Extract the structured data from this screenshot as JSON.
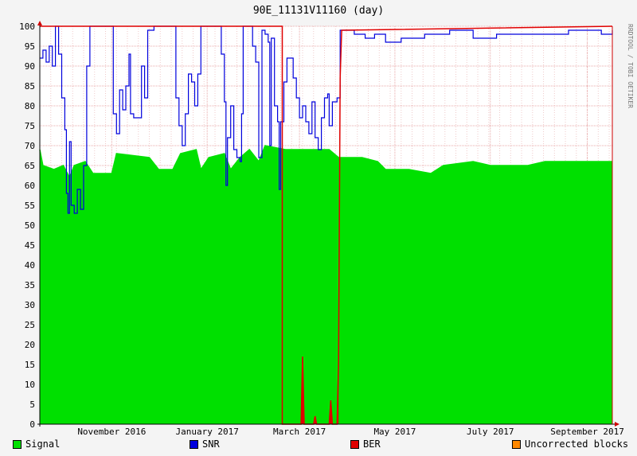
{
  "chart_data": {
    "type": "area",
    "title": "90E_11131V11160 (day)",
    "side_label": "RRDTOOL / TOBI OETIKER",
    "ylim": [
      0,
      100
    ],
    "y_ticks": [
      0,
      5,
      10,
      15,
      20,
      25,
      30,
      35,
      40,
      45,
      50,
      55,
      60,
      65,
      70,
      75,
      80,
      85,
      90,
      95,
      100
    ],
    "x_range": [
      "2016-09-16",
      "2017-09-17"
    ],
    "x_ticks": [
      {
        "date": "2016-11-01",
        "label": "November 2016"
      },
      {
        "date": "2017-01-01",
        "label": "January 2017"
      },
      {
        "date": "2017-03-01",
        "label": "March 2017"
      },
      {
        "date": "2017-05-01",
        "label": "May 2017"
      },
      {
        "date": "2017-07-01",
        "label": "July 2017"
      },
      {
        "date": "2017-09-01",
        "label": "September 2017"
      }
    ],
    "grid": true,
    "legend_position": "bottom",
    "series": [
      {
        "name": "Signal",
        "color": "#00e000",
        "style": "area",
        "points": [
          [
            "2016-09-16",
            69
          ],
          [
            "2016-09-18",
            65
          ],
          [
            "2016-09-25",
            64
          ],
          [
            "2016-10-01",
            65
          ],
          [
            "2016-10-05",
            62
          ],
          [
            "2016-10-08",
            65
          ],
          [
            "2016-10-15",
            66
          ],
          [
            "2016-10-20",
            63
          ],
          [
            "2016-11-01",
            63
          ],
          [
            "2016-11-04",
            68
          ],
          [
            "2016-11-25",
            67
          ],
          [
            "2016-12-01",
            64
          ],
          [
            "2016-12-10",
            64
          ],
          [
            "2016-12-15",
            68
          ],
          [
            "2016-12-25",
            69
          ],
          [
            "2016-12-28",
            64
          ],
          [
            "2017-01-02",
            67
          ],
          [
            "2017-01-12",
            68
          ],
          [
            "2017-01-16",
            64
          ],
          [
            "2017-01-22",
            67
          ],
          [
            "2017-01-28",
            69
          ],
          [
            "2017-02-03",
            66
          ],
          [
            "2017-02-07",
            70
          ],
          [
            "2017-02-20",
            69
          ],
          [
            "2017-03-05",
            69
          ],
          [
            "2017-03-20",
            69
          ],
          [
            "2017-03-26",
            67
          ],
          [
            "2017-04-10",
            67
          ],
          [
            "2017-04-20",
            66
          ],
          [
            "2017-04-25",
            64
          ],
          [
            "2017-05-10",
            64
          ],
          [
            "2017-05-24",
            63
          ],
          [
            "2017-06-01",
            65
          ],
          [
            "2017-06-20",
            66
          ],
          [
            "2017-07-01",
            65
          ],
          [
            "2017-07-25",
            65
          ],
          [
            "2017-08-05",
            66
          ],
          [
            "2017-09-01",
            66
          ],
          [
            "2017-09-17",
            66
          ]
        ]
      },
      {
        "name": "SNR",
        "color": "#0000dd",
        "style": "line",
        "points": [
          [
            "2016-09-16",
            92
          ],
          [
            "2016-09-18",
            94
          ],
          [
            "2016-09-20",
            91
          ],
          [
            "2016-09-22",
            95
          ],
          [
            "2016-09-24",
            90
          ],
          [
            "2016-09-26",
            100
          ],
          [
            "2016-09-28",
            93
          ],
          [
            "2016-09-30",
            82
          ],
          [
            "2016-10-02",
            74
          ],
          [
            "2016-10-03",
            58
          ],
          [
            "2016-10-04",
            53
          ],
          [
            "2016-10-05",
            71
          ],
          [
            "2016-10-06",
            55
          ],
          [
            "2016-10-08",
            53
          ],
          [
            "2016-10-10",
            59
          ],
          [
            "2016-10-12",
            54
          ],
          [
            "2016-10-14",
            65
          ],
          [
            "2016-10-16",
            90
          ],
          [
            "2016-10-18",
            100
          ],
          [
            "2016-10-30",
            100
          ],
          [
            "2016-11-02",
            78
          ],
          [
            "2016-11-04",
            73
          ],
          [
            "2016-11-06",
            84
          ],
          [
            "2016-11-08",
            79
          ],
          [
            "2016-11-10",
            85
          ],
          [
            "2016-11-12",
            93
          ],
          [
            "2016-11-13",
            78
          ],
          [
            "2016-11-15",
            77
          ],
          [
            "2016-11-18",
            77
          ],
          [
            "2016-11-20",
            90
          ],
          [
            "2016-11-22",
            82
          ],
          [
            "2016-11-24",
            99
          ],
          [
            "2016-11-28",
            100
          ],
          [
            "2016-12-10",
            100
          ],
          [
            "2016-12-12",
            82
          ],
          [
            "2016-12-14",
            75
          ],
          [
            "2016-12-16",
            70
          ],
          [
            "2016-12-18",
            78
          ],
          [
            "2016-12-20",
            88
          ],
          [
            "2016-12-22",
            86
          ],
          [
            "2016-12-24",
            80
          ],
          [
            "2016-12-26",
            88
          ],
          [
            "2016-12-28",
            100
          ],
          [
            "2017-01-08",
            100
          ],
          [
            "2017-01-10",
            93
          ],
          [
            "2017-01-12",
            81
          ],
          [
            "2017-01-13",
            60
          ],
          [
            "2017-01-14",
            72
          ],
          [
            "2017-01-16",
            80
          ],
          [
            "2017-01-18",
            69
          ],
          [
            "2017-01-20",
            67
          ],
          [
            "2017-01-22",
            66
          ],
          [
            "2017-01-23",
            78
          ],
          [
            "2017-01-24",
            100
          ],
          [
            "2017-01-28",
            100
          ],
          [
            "2017-01-30",
            95
          ],
          [
            "2017-02-01",
            91
          ],
          [
            "2017-02-03",
            67
          ],
          [
            "2017-02-05",
            99
          ],
          [
            "2017-02-07",
            98
          ],
          [
            "2017-02-09",
            96
          ],
          [
            "2017-02-10",
            70
          ],
          [
            "2017-02-11",
            97
          ],
          [
            "2017-02-13",
            80
          ],
          [
            "2017-02-15",
            76
          ],
          [
            "2017-02-16",
            59
          ],
          [
            "2017-02-17",
            76
          ],
          [
            "2017-02-19",
            86
          ],
          [
            "2017-02-21",
            92
          ],
          [
            "2017-02-23",
            92
          ],
          [
            "2017-02-25",
            87
          ],
          [
            "2017-02-27",
            82
          ],
          [
            "2017-03-01",
            77
          ],
          [
            "2017-03-03",
            80
          ],
          [
            "2017-03-05",
            76
          ],
          [
            "2017-03-07",
            73
          ],
          [
            "2017-03-09",
            81
          ],
          [
            "2017-03-11",
            72
          ],
          [
            "2017-03-13",
            69
          ],
          [
            "2017-03-15",
            77
          ],
          [
            "2017-03-17",
            82
          ],
          [
            "2017-03-19",
            83
          ],
          [
            "2017-03-20",
            75
          ],
          [
            "2017-03-22",
            81
          ],
          [
            "2017-03-25",
            82
          ],
          [
            "2017-03-27",
            99
          ],
          [
            "2017-04-05",
            98
          ],
          [
            "2017-04-12",
            97
          ],
          [
            "2017-04-18",
            98
          ],
          [
            "2017-04-25",
            96
          ],
          [
            "2017-05-05",
            97
          ],
          [
            "2017-05-20",
            98
          ],
          [
            "2017-06-05",
            99
          ],
          [
            "2017-06-20",
            97
          ],
          [
            "2017-07-05",
            98
          ],
          [
            "2017-07-20",
            98
          ],
          [
            "2017-08-05",
            98
          ],
          [
            "2017-08-20",
            99
          ],
          [
            "2017-09-01",
            99
          ],
          [
            "2017-09-10",
            98
          ],
          [
            "2017-09-17",
            99
          ]
        ]
      },
      {
        "name": "BER",
        "color": "#e00000",
        "style": "area",
        "points": [
          [
            "2016-09-16",
            100
          ],
          [
            "2017-02-18",
            100
          ],
          [
            "2017-02-18",
            0
          ],
          [
            "2017-03-02",
            0
          ],
          [
            "2017-03-03",
            17
          ],
          [
            "2017-03-04",
            0
          ],
          [
            "2017-03-10",
            0
          ],
          [
            "2017-03-11",
            2
          ],
          [
            "2017-03-12",
            0
          ],
          [
            "2017-03-20",
            0
          ],
          [
            "2017-03-21",
            6
          ],
          [
            "2017-03-22",
            0
          ],
          [
            "2017-03-25",
            0
          ],
          [
            "2017-03-26",
            15
          ],
          [
            "2017-03-27",
            87
          ],
          [
            "2017-03-28",
            99
          ],
          [
            "2017-09-17",
            100
          ]
        ]
      },
      {
        "name": "Uncorrected blocks",
        "color": "#ff8800",
        "style": "area",
        "points": []
      }
    ]
  }
}
